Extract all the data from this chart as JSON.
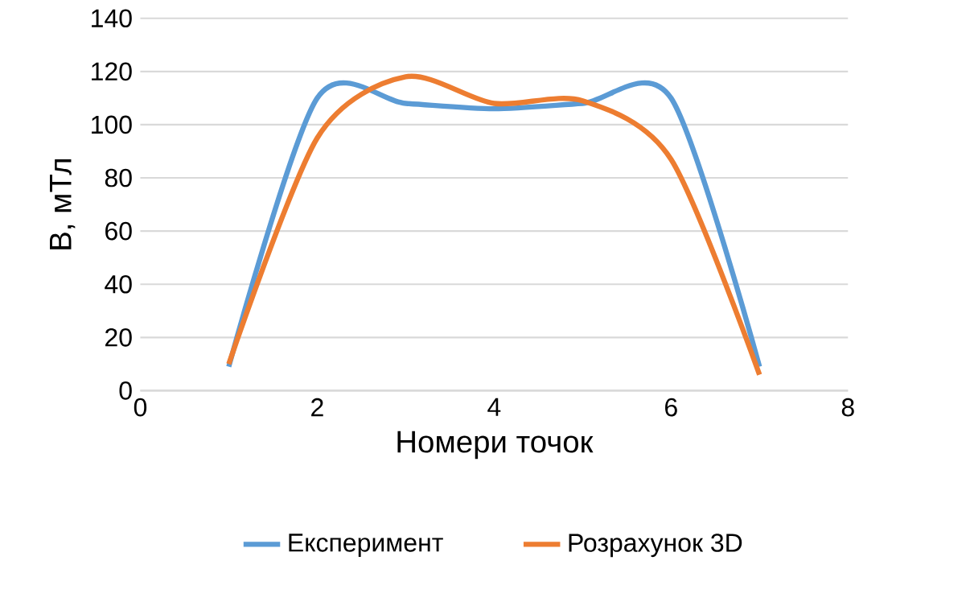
{
  "chart_data": {
    "type": "line",
    "xlabel": "Номери точок",
    "ylabel": "B, мТл",
    "x": [
      1,
      2,
      3,
      4,
      5,
      6,
      7
    ],
    "series": [
      {
        "name": "Експеримент",
        "color": "#5b9bd5",
        "values": [
          9,
          110,
          108,
          106,
          108,
          110,
          9
        ]
      },
      {
        "name": "Розрахунок 3D",
        "color": "#ed7d31",
        "values": [
          10,
          95,
          118,
          108,
          109,
          87,
          6
        ]
      }
    ],
    "xlim": [
      0,
      8
    ],
    "xticks": [
      0,
      2,
      4,
      6,
      8
    ],
    "ylim": [
      0,
      140
    ],
    "yticks": [
      0,
      20,
      40,
      60,
      80,
      100,
      120,
      140
    ],
    "grid": "y",
    "legend": "bottom",
    "marker": "none",
    "line_style": "solid"
  }
}
